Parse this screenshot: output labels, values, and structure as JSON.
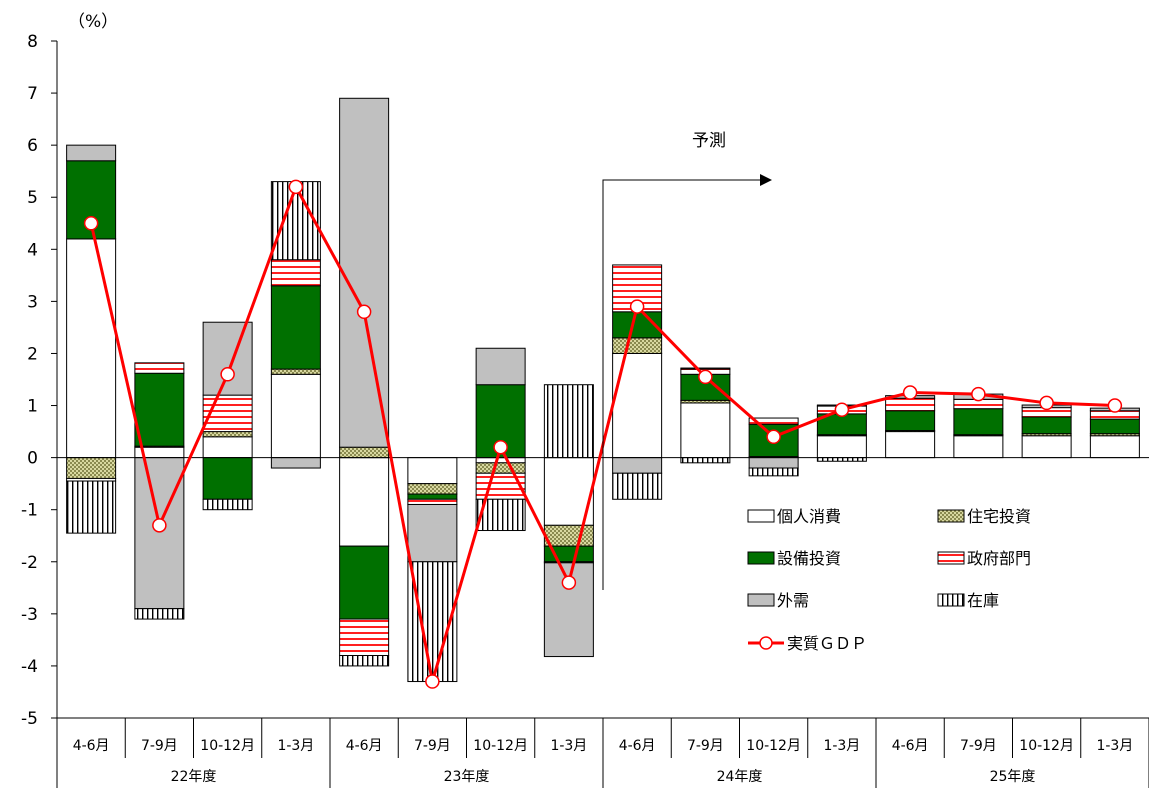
{
  "chart_data": {
    "type": "bar",
    "stacked": true,
    "ylabel": "（%）",
    "ylim": [
      -5,
      8
    ],
    "yticks": [
      -5,
      -4,
      -3,
      -2,
      -1,
      0,
      1,
      2,
      3,
      4,
      5,
      6,
      7,
      8
    ],
    "grid": false,
    "legend_position": "bottom-right",
    "categories": [
      "4-6月",
      "7-9月",
      "10-12月",
      "1-3月",
      "4-6月",
      "7-9月",
      "10-12月",
      "1-3月",
      "4-6月",
      "7-9月",
      "10-12月",
      "1-3月",
      "4-6月",
      "7-9月",
      "10-12月",
      "1-3月"
    ],
    "groups": [
      {
        "label": "22年度",
        "span": [
          0,
          3
        ]
      },
      {
        "label": "23年度",
        "span": [
          4,
          7
        ]
      },
      {
        "label": "24年度",
        "span": [
          8,
          11
        ]
      },
      {
        "label": "25年度",
        "span": [
          12,
          15
        ]
      }
    ],
    "forecast_annotation": {
      "label": "予測",
      "start_index": 8
    },
    "series": [
      {
        "name": "個人消費",
        "key": "consumption",
        "values": [
          4.2,
          0.2,
          0.4,
          1.6,
          -1.7,
          -0.5,
          -0.1,
          -1.3,
          2.0,
          1.05,
          0.0,
          0.42,
          0.5,
          0.42,
          0.42,
          0.42
        ],
        "color": "#ffffff"
      },
      {
        "name": "住宅投資",
        "key": "housing",
        "values": [
          -0.4,
          0.02,
          0.1,
          0.1,
          0.2,
          -0.2,
          -0.2,
          -0.4,
          0.3,
          0.05,
          0.02,
          0.02,
          0.02,
          0.02,
          0.04,
          0.04
        ],
        "color": "#c8c88c"
      },
      {
        "name": "設備投資",
        "key": "equipment",
        "values": [
          1.5,
          1.4,
          -0.8,
          1.6,
          -1.4,
          -0.1,
          1.4,
          -0.3,
          0.5,
          0.5,
          0.62,
          0.4,
          0.38,
          0.5,
          0.32,
          0.28
        ],
        "color": "#007000"
      },
      {
        "name": "政府部門",
        "key": "government",
        "values": [
          -0.05,
          0.2,
          0.7,
          0.5,
          -0.7,
          -0.1,
          -0.5,
          -0.02,
          0.9,
          0.1,
          0.12,
          0.15,
          0.24,
          0.18,
          0.18,
          0.16
        ],
        "color": "#ff3030"
      },
      {
        "name": "外需",
        "key": "external",
        "values": [
          0.3,
          -2.9,
          1.4,
          -0.2,
          6.7,
          -1.1,
          0.7,
          -1.8,
          -0.3,
          0.02,
          -0.2,
          0.02,
          0.05,
          0.1,
          0.05,
          0.05
        ],
        "color": "#c0c0c0"
      },
      {
        "name": "在庫",
        "key": "inventory",
        "values": [
          -1.0,
          -0.2,
          -0.2,
          1.5,
          -0.2,
          -2.3,
          -0.6,
          1.4,
          -0.5,
          -0.1,
          -0.15,
          -0.07,
          0.0,
          0.0,
          0.0,
          0.0
        ],
        "color": "#ffffff"
      }
    ],
    "line": {
      "name": "実質ＧＤＰ",
      "key": "gdp",
      "values": [
        4.5,
        -1.3,
        1.6,
        5.2,
        2.8,
        -4.3,
        0.2,
        -2.4,
        2.9,
        1.55,
        0.4,
        0.92,
        1.25,
        1.22,
        1.05,
        1.0
      ],
      "color": "#ff0000"
    }
  }
}
